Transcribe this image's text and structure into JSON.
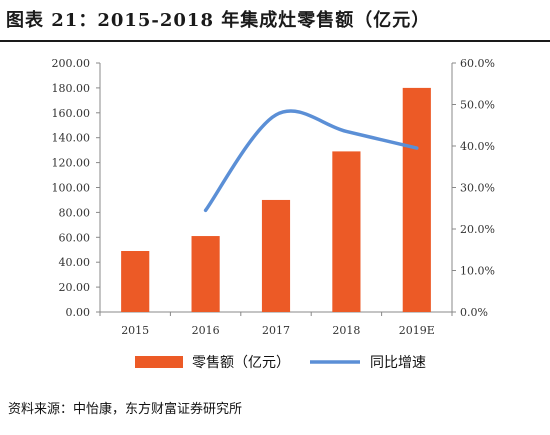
{
  "title": "图表 21：2015-2018 年集成灶零售额（亿元）",
  "source": "资料来源：中怡康，东方财富证券研究所",
  "colors": {
    "bar": "#ec5a26",
    "line": "#5b8fd6",
    "grid": "#dddddd",
    "axis": "#888888"
  },
  "chart_data": {
    "type": "bar",
    "categories": [
      "2015",
      "2016",
      "2017",
      "2018",
      "2019E"
    ],
    "series": [
      {
        "name": "零售额（亿元）",
        "type": "bar",
        "axis": "left",
        "values": [
          49,
          61,
          90,
          129,
          180
        ]
      },
      {
        "name": "同比增速",
        "type": "line",
        "axis": "right",
        "values": [
          null,
          24.5,
          47.5,
          43.5,
          39.5
        ]
      }
    ],
    "y_left": {
      "ylim": [
        0,
        200
      ],
      "ticks": [
        "0.00",
        "20.00",
        "40.00",
        "60.00",
        "80.00",
        "100.00",
        "120.00",
        "140.00",
        "160.00",
        "180.00",
        "200.00"
      ]
    },
    "y_right": {
      "ylim": [
        0,
        60
      ],
      "ticks": [
        "0.0%",
        "10.0%",
        "20.0%",
        "30.0%",
        "40.0%",
        "50.0%",
        "60.0%"
      ]
    },
    "legend": {
      "placement": "bottom",
      "items": [
        "零售额（亿元）",
        "同比增速"
      ]
    },
    "grid": false
  }
}
